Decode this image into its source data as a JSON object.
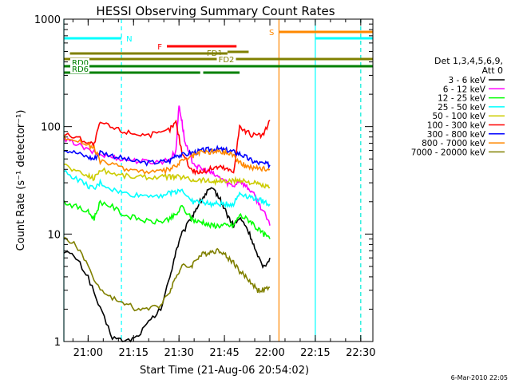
{
  "chart_data": {
    "type": "line",
    "title": "HESSI Observing Summary Count Rates",
    "xlabel": "Start Time (21-Aug-06 20:54:02)",
    "ylabel": "Count Rate (s⁻¹ detector⁻¹)",
    "yscale": "log",
    "ylim": [
      1,
      1000
    ],
    "xlim_minutes": [
      -2,
      100
    ],
    "x_ticks": [
      {
        "m": 6,
        "label": "21:00"
      },
      {
        "m": 21,
        "label": "21:15"
      },
      {
        "m": 36,
        "label": "21:30"
      },
      {
        "m": 51,
        "label": "21:45"
      },
      {
        "m": 66,
        "label": "22:00"
      },
      {
        "m": 81,
        "label": "22:15"
      },
      {
        "m": 96,
        "label": "22:30"
      }
    ],
    "y_ticks": [
      {
        "v": 1,
        "label": "1"
      },
      {
        "v": 10,
        "label": "10"
      },
      {
        "v": 100,
        "label": "100"
      },
      {
        "v": 1000,
        "label": "1000"
      }
    ],
    "legend_header": [
      "Det 1,3,4,5,6,9,",
      "Att 0"
    ],
    "series": [
      {
        "name": "3 - 6 keV",
        "color": "#000000",
        "points": [
          [
            -2,
            7
          ],
          [
            2,
            6
          ],
          [
            6,
            4
          ],
          [
            10,
            2
          ],
          [
            14,
            1.1
          ],
          [
            18,
            1
          ],
          [
            22,
            1.1
          ],
          [
            26,
            1.5
          ],
          [
            30,
            2
          ],
          [
            33,
            4
          ],
          [
            35,
            7
          ],
          [
            37,
            10
          ],
          [
            40,
            14
          ],
          [
            42,
            18
          ],
          [
            44,
            22
          ],
          [
            46,
            26
          ],
          [
            48,
            25
          ],
          [
            50,
            20
          ],
          [
            52,
            15
          ],
          [
            54,
            12
          ],
          [
            56,
            14
          ],
          [
            58,
            12
          ],
          [
            60,
            9
          ],
          [
            62,
            6
          ],
          [
            64,
            5
          ],
          [
            66,
            6
          ]
        ]
      },
      {
        "name": "6 - 12 keV",
        "color": "#ff00ff",
        "points": [
          [
            -2,
            75
          ],
          [
            2,
            70
          ],
          [
            6,
            60
          ],
          [
            10,
            55
          ],
          [
            14,
            52
          ],
          [
            18,
            50
          ],
          [
            22,
            48
          ],
          [
            26,
            47
          ],
          [
            30,
            47
          ],
          [
            33,
            50
          ],
          [
            35,
            60
          ],
          [
            36,
            160
          ],
          [
            37,
            110
          ],
          [
            38,
            70
          ],
          [
            40,
            50
          ],
          [
            42,
            42
          ],
          [
            44,
            40
          ],
          [
            46,
            38
          ],
          [
            48,
            35
          ],
          [
            50,
            33
          ],
          [
            52,
            30
          ],
          [
            54,
            28
          ],
          [
            56,
            32
          ],
          [
            58,
            28
          ],
          [
            60,
            25
          ],
          [
            62,
            20
          ],
          [
            64,
            16
          ],
          [
            66,
            12
          ]
        ]
      },
      {
        "name": "12 - 25 keV",
        "color": "#00ff00",
        "points": [
          [
            -2,
            20
          ],
          [
            2,
            18
          ],
          [
            6,
            16
          ],
          [
            8,
            14
          ],
          [
            10,
            20
          ],
          [
            14,
            18
          ],
          [
            18,
            15
          ],
          [
            22,
            14
          ],
          [
            26,
            13
          ],
          [
            30,
            13
          ],
          [
            33,
            14
          ],
          [
            35,
            15
          ],
          [
            37,
            18
          ],
          [
            40,
            14
          ],
          [
            42,
            13
          ],
          [
            44,
            13
          ],
          [
            46,
            12
          ],
          [
            48,
            12
          ],
          [
            50,
            12
          ],
          [
            52,
            12
          ],
          [
            54,
            12
          ],
          [
            56,
            15
          ],
          [
            58,
            14
          ],
          [
            60,
            13
          ],
          [
            62,
            11
          ],
          [
            64,
            10
          ],
          [
            66,
            9
          ]
        ]
      },
      {
        "name": "25 - 50 keV",
        "color": "#00ffff",
        "points": [
          [
            -2,
            38
          ],
          [
            2,
            33
          ],
          [
            6,
            28
          ],
          [
            8,
            26
          ],
          [
            10,
            30
          ],
          [
            14,
            26
          ],
          [
            18,
            24
          ],
          [
            22,
            23
          ],
          [
            26,
            23
          ],
          [
            30,
            23
          ],
          [
            33,
            24
          ],
          [
            35,
            25
          ],
          [
            37,
            26
          ],
          [
            40,
            20
          ],
          [
            42,
            20
          ],
          [
            44,
            20
          ],
          [
            46,
            19
          ],
          [
            48,
            19
          ],
          [
            50,
            19
          ],
          [
            52,
            19
          ],
          [
            54,
            19
          ],
          [
            56,
            24
          ],
          [
            58,
            23
          ],
          [
            60,
            22
          ],
          [
            62,
            21
          ],
          [
            64,
            20
          ],
          [
            66,
            19
          ]
        ]
      },
      {
        "name": "50 - 100 keV",
        "color": "#cccc00",
        "points": [
          [
            -2,
            45
          ],
          [
            2,
            38
          ],
          [
            6,
            35
          ],
          [
            8,
            33
          ],
          [
            10,
            40
          ],
          [
            14,
            37
          ],
          [
            18,
            35
          ],
          [
            22,
            34
          ],
          [
            26,
            34
          ],
          [
            30,
            34
          ],
          [
            33,
            34
          ],
          [
            35,
            34
          ],
          [
            37,
            34
          ],
          [
            40,
            32
          ],
          [
            42,
            32
          ],
          [
            44,
            32
          ],
          [
            46,
            31
          ],
          [
            48,
            31
          ],
          [
            50,
            31
          ],
          [
            52,
            31
          ],
          [
            54,
            31
          ],
          [
            56,
            32
          ],
          [
            58,
            31
          ],
          [
            60,
            30
          ],
          [
            62,
            29
          ],
          [
            64,
            28
          ],
          [
            66,
            27
          ]
        ]
      },
      {
        "name": "100 - 300 keV",
        "color": "#ff0000",
        "points": [
          [
            -2,
            85
          ],
          [
            2,
            80
          ],
          [
            6,
            72
          ],
          [
            8,
            68
          ],
          [
            10,
            110
          ],
          [
            14,
            98
          ],
          [
            18,
            90
          ],
          [
            22,
            86
          ],
          [
            26,
            84
          ],
          [
            30,
            86
          ],
          [
            33,
            95
          ],
          [
            35,
            110
          ],
          [
            37,
            58
          ],
          [
            40,
            40
          ],
          [
            42,
            38
          ],
          [
            44,
            38
          ],
          [
            46,
            40
          ],
          [
            48,
            42
          ],
          [
            50,
            42
          ],
          [
            52,
            40
          ],
          [
            54,
            38
          ],
          [
            56,
            100
          ],
          [
            58,
            90
          ],
          [
            60,
            84
          ],
          [
            62,
            82
          ],
          [
            64,
            84
          ],
          [
            66,
            115
          ]
        ]
      },
      {
        "name": "300 - 800 keV",
        "color": "#0000ff",
        "points": [
          [
            -2,
            62
          ],
          [
            2,
            57
          ],
          [
            6,
            52
          ],
          [
            8,
            50
          ],
          [
            10,
            58
          ],
          [
            14,
            54
          ],
          [
            18,
            50
          ],
          [
            22,
            47
          ],
          [
            26,
            46
          ],
          [
            30,
            47
          ],
          [
            33,
            48
          ],
          [
            35,
            55
          ],
          [
            37,
            54
          ],
          [
            40,
            57
          ],
          [
            42,
            58
          ],
          [
            44,
            60
          ],
          [
            46,
            61
          ],
          [
            48,
            62
          ],
          [
            50,
            61
          ],
          [
            52,
            60
          ],
          [
            54,
            58
          ],
          [
            56,
            56
          ],
          [
            58,
            52
          ],
          [
            60,
            48
          ],
          [
            62,
            46
          ],
          [
            64,
            45
          ],
          [
            66,
            44
          ]
        ]
      },
      {
        "name": "800 - 7000 keV",
        "color": "#ff8800",
        "points": [
          [
            -2,
            80
          ],
          [
            2,
            75
          ],
          [
            6,
            68
          ],
          [
            8,
            62
          ],
          [
            10,
            48
          ],
          [
            14,
            44
          ],
          [
            18,
            41
          ],
          [
            22,
            39
          ],
          [
            26,
            38
          ],
          [
            30,
            38
          ],
          [
            33,
            40
          ],
          [
            35,
            43
          ],
          [
            37,
            48
          ],
          [
            40,
            52
          ],
          [
            42,
            56
          ],
          [
            44,
            58
          ],
          [
            46,
            58
          ],
          [
            48,
            59
          ],
          [
            50,
            58
          ],
          [
            52,
            57
          ],
          [
            54,
            55
          ],
          [
            56,
            46
          ],
          [
            58,
            43
          ],
          [
            60,
            42
          ],
          [
            62,
            41
          ],
          [
            64,
            41
          ],
          [
            66,
            40
          ]
        ]
      },
      {
        "name": "7000 - 20000 keV",
        "color": "#808000",
        "points": [
          [
            -2,
            9
          ],
          [
            2,
            8
          ],
          [
            6,
            5
          ],
          [
            10,
            3
          ],
          [
            14,
            2.5
          ],
          [
            18,
            2.3
          ],
          [
            22,
            2
          ],
          [
            26,
            2
          ],
          [
            30,
            2.2
          ],
          [
            33,
            3
          ],
          [
            35,
            4
          ],
          [
            37,
            5
          ],
          [
            40,
            5
          ],
          [
            42,
            6
          ],
          [
            44,
            6.5
          ],
          [
            46,
            6.8
          ],
          [
            48,
            7
          ],
          [
            50,
            7
          ],
          [
            52,
            6
          ],
          [
            54,
            5.5
          ],
          [
            56,
            4.5
          ],
          [
            58,
            4
          ],
          [
            60,
            3.5
          ],
          [
            62,
            3
          ],
          [
            64,
            3
          ],
          [
            66,
            3.2
          ]
        ]
      }
    ],
    "vertical_markers": [
      {
        "m": -2,
        "color": "#00ffff",
        "style": "solid"
      },
      {
        "m": 17,
        "color": "#00ffff",
        "style": "dashed"
      },
      {
        "m": 69,
        "color": "#ff8800",
        "style": "solid"
      },
      {
        "m": 81,
        "color": "#00ffff",
        "style": "solid"
      },
      {
        "m": 96,
        "color": "#ff8800",
        "style": "dashed"
      },
      {
        "m": 96,
        "color": "#00ffff",
        "style": "dashed"
      }
    ],
    "flag_bars": [
      {
        "label": "N",
        "color": "#00ffff",
        "m1": -2,
        "m2": 17,
        "y": 48,
        "label_pos": "after"
      },
      {
        "label": "N",
        "color": "#00ffff",
        "m1": 81,
        "m2": 100,
        "y": 48,
        "label_pos": "none"
      },
      {
        "label": "F",
        "color": "#ff0000",
        "m1": 32,
        "m2": 55,
        "y": 58,
        "label_pos": "before"
      },
      {
        "label": "S",
        "color": "#ff8800",
        "m1": 69,
        "m2": 100,
        "y": 40,
        "label_pos": "before"
      },
      {
        "label": "FD1",
        "color": "#808000",
        "m1": 0,
        "m2": 52,
        "y": 67,
        "label_pos": "under-end"
      },
      {
        "label": "FD1",
        "color": "#808000",
        "m1": 52,
        "m2": 59,
        "y": 65,
        "label_pos": "none"
      },
      {
        "label": "FD2",
        "color": "#808000",
        "m1": -2,
        "m2": 100,
        "y": 74,
        "label_pos": "mid-label"
      },
      {
        "label": "RD0",
        "color": "#008000",
        "m1": -2,
        "m2": 100,
        "y": 83,
        "label_pos": "start-label"
      },
      {
        "label": "RD6",
        "color": "#008000",
        "m1": -2,
        "m2": 43,
        "y": 91,
        "label_pos": "start-label"
      },
      {
        "label": "RD6",
        "color": "#008000",
        "m1": 44,
        "m2": 56,
        "y": 91,
        "label_pos": "none"
      }
    ],
    "footer_timestamp": "6-Mar-2010 22:05"
  }
}
